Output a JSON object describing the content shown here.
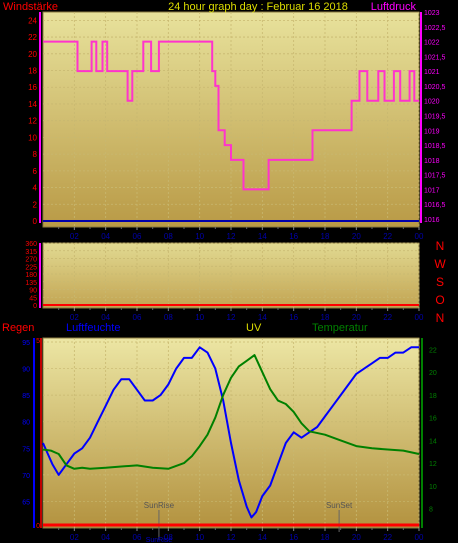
{
  "top_panel": {
    "left_label": "Windstärke",
    "title": "24 hour graph day : Februar 16 2018",
    "right_label": "Luftdruck"
  },
  "middle_panel": {
    "compass": [
      "N",
      "W",
      "S",
      "O",
      "N"
    ]
  },
  "bottom_panel": {
    "labels": {
      "regen": "Regen",
      "luftfeuchte": "Luftfeuchte",
      "uv": "UV",
      "temperatur": "Temperatur"
    },
    "sunrise": "SunRise",
    "sunset": "SunSet"
  },
  "colors": {
    "background": "#000000",
    "wind_axis": "#ff00ff",
    "pressure": "#ff33cc",
    "humidity": "#0000ff",
    "temperature": "#008000",
    "uv": "#dddd00",
    "rain": "#ff0000",
    "wind_direction": "#ff0000",
    "compass": "#ff0000"
  },
  "chart_data": [
    {
      "type": "line",
      "name": "pressure-wind",
      "title": "24 hour graph day : Februar 16 2018",
      "x_ticks": [
        "02",
        "04",
        "06",
        "08",
        "10",
        "12",
        "14",
        "16",
        "18",
        "20",
        "22",
        "00"
      ],
      "x_range": [
        0,
        24
      ],
      "left_axis": {
        "label": "Windstärke",
        "range": [
          0,
          25
        ],
        "ticks": [
          0,
          2,
          4,
          6,
          8,
          10,
          12,
          14,
          16,
          18,
          20,
          22,
          24
        ]
      },
      "right_axis": {
        "label": "Luftdruck",
        "range": [
          1016,
          1023
        ],
        "ticks": [
          "1016",
          "1016,5",
          "1017",
          "1017,5",
          "1018",
          "1018,5",
          "1019",
          "1019,5",
          "1020",
          "1020,5",
          "1021",
          "1021,5",
          "1022",
          "1022,5",
          "1023"
        ]
      },
      "series": [
        {
          "name": "Luftdruck",
          "axis": "right",
          "step": true,
          "x": [
            0,
            2.2,
            3.1,
            3.4,
            3.8,
            4.1,
            5.4,
            5.7,
            6.4,
            6.9,
            7.4,
            10.8,
            11.0,
            11.2,
            11.6,
            12.0,
            12.8,
            14.4,
            17.2,
            19.7,
            20.2,
            20.7,
            21.4,
            21.8,
            22.4,
            22.8,
            23.4,
            23.7,
            24
          ],
          "y": [
            1022,
            1021,
            1022,
            1021,
            1022,
            1021,
            1020,
            1021,
            1022,
            1021,
            1022,
            1021,
            1020.5,
            1019,
            1018.5,
            1018,
            1017,
            1018,
            1019,
            1020,
            1021,
            1020,
            1021,
            1020,
            1021,
            1020,
            1021,
            1020,
            1020
          ]
        },
        {
          "name": "Windstärke",
          "axis": "left",
          "x": [
            0,
            24
          ],
          "y": [
            0,
            0
          ]
        }
      ],
      "grid": true
    },
    {
      "type": "line",
      "name": "wind-direction",
      "x_ticks": [
        "02",
        "04",
        "06",
        "08",
        "10",
        "12",
        "14",
        "16",
        "18",
        "20",
        "22",
        "00"
      ],
      "x_range": [
        0,
        24
      ],
      "left_axis": {
        "range": [
          0,
          360
        ],
        "ticks": [
          0,
          45,
          90,
          135,
          180,
          225,
          270,
          315,
          360
        ]
      },
      "series": [
        {
          "name": "Windrichtung",
          "x": [
            0,
            24
          ],
          "y": [
            0,
            0
          ]
        }
      ],
      "grid": true
    },
    {
      "type": "line",
      "name": "humidity-temperature",
      "x_ticks": [
        "02",
        "04",
        "06",
        "08",
        "10",
        "12",
        "14",
        "16",
        "18",
        "20",
        "22",
        "00"
      ],
      "x_range": [
        0,
        24
      ],
      "left_axis": {
        "label": "Luftfeuchte",
        "range": [
          60,
          95
        ],
        "ticks": [
          65,
          70,
          75,
          80,
          85,
          90,
          95
        ]
      },
      "rain_axis": {
        "label": "Regen",
        "range": [
          0,
          5
        ],
        "ticks": [
          0,
          5
        ]
      },
      "right_axis": {
        "label": "Temperatur",
        "range": [
          7,
          23
        ],
        "ticks": [
          8,
          10,
          12,
          14,
          16,
          18,
          20,
          22
        ]
      },
      "uv_label": "UV",
      "series": [
        {
          "name": "Luftfeuchte",
          "axis": "left",
          "x": [
            0,
            0.3,
            0.6,
            1.0,
            1.5,
            2.0,
            2.5,
            3.0,
            3.5,
            4.0,
            4.5,
            5.0,
            5.5,
            6.0,
            6.5,
            7.0,
            7.5,
            8.0,
            8.5,
            9.0,
            9.5,
            10.0,
            10.5,
            11.0,
            11.5,
            12.0,
            12.5,
            13.0,
            13.3,
            13.6,
            14.0,
            14.5,
            15.0,
            15.5,
            16.0,
            16.5,
            17.0,
            17.5,
            18.0,
            18.5,
            19.0,
            19.5,
            20.0,
            20.5,
            21.0,
            21.5,
            22.0,
            22.5,
            23.0,
            23.5,
            24
          ],
          "y": [
            76,
            74,
            72,
            70,
            72,
            74,
            75,
            77,
            80,
            83,
            86,
            88,
            88,
            86,
            84,
            84,
            85,
            87,
            90,
            92,
            92,
            94,
            93,
            90,
            84,
            76,
            69,
            64,
            62,
            63,
            66,
            68,
            72,
            76,
            78,
            77,
            78,
            79,
            81,
            83,
            85,
            87,
            89,
            90,
            91,
            92,
            92,
            93,
            93,
            94,
            94
          ]
        },
        {
          "name": "Temperatur",
          "axis": "right",
          "x": [
            0,
            0.5,
            1.0,
            1.5,
            2.0,
            2.5,
            3.0,
            4.0,
            5.0,
            6.0,
            7.0,
            8.0,
            9.0,
            9.5,
            10.0,
            10.5,
            11.0,
            11.5,
            12.0,
            12.5,
            13.0,
            13.5,
            14.0,
            14.5,
            15.0,
            15.5,
            16.0,
            16.5,
            17.0,
            18.0,
            19.0,
            20.0,
            21.0,
            22.0,
            23.0,
            24
          ],
          "y": [
            13.2,
            13.1,
            12.8,
            11.8,
            11.5,
            11.6,
            11.5,
            11.6,
            11.7,
            11.8,
            11.6,
            11.5,
            12.0,
            12.6,
            13.5,
            14.5,
            16.0,
            18.0,
            19.5,
            20.5,
            21.0,
            21.5,
            20.0,
            18.5,
            17.5,
            17.2,
            16.5,
            15.5,
            14.8,
            14.5,
            14.0,
            13.5,
            13.3,
            13.2,
            13.1,
            12.8
          ]
        },
        {
          "name": "Regen",
          "axis": "rain",
          "x": [
            0,
            24
          ],
          "y": [
            0,
            0
          ]
        }
      ],
      "markers": {
        "sunrise_hour": 7.4,
        "sunset_hour": 18.9
      },
      "grid": true
    }
  ]
}
